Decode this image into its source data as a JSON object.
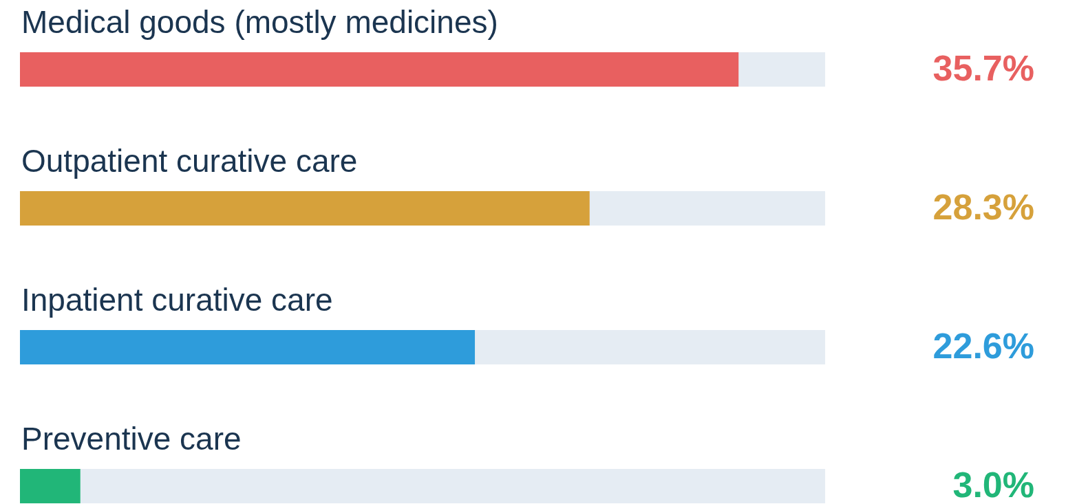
{
  "chart_data": {
    "type": "bar",
    "orientation": "horizontal",
    "categories": [
      "Medical goods (mostly medicines)",
      "Outpatient curative care",
      "Inpatient curative care",
      "Preventive care"
    ],
    "values": [
      35.7,
      28.3,
      22.6,
      3.0
    ],
    "colors": [
      "#e86060",
      "#d6a13b",
      "#2e9cdb",
      "#21b678"
    ],
    "value_labels": [
      "35.7%",
      "28.3%",
      "22.6%",
      "3.0%"
    ],
    "xlim": [
      0,
      40
    ]
  }
}
